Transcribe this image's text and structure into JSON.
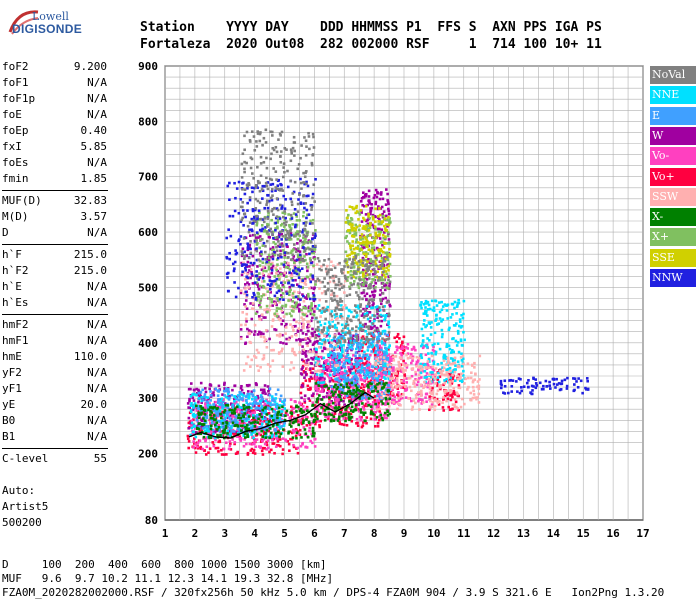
{
  "logo": {
    "top": "Lowell",
    "bottom": "DIGISONDE"
  },
  "header": {
    "line1": "Station    YYYY DAY    DDD HHMMSS P1  FFS S  AXN PPS IGA PS",
    "line2": "Fortaleza  2020 Out08  282 002000 RSF     1  714 100 10+ 11"
  },
  "params": [
    {
      "name": "foF2",
      "value": "9.200"
    },
    {
      "name": "foF1",
      "value": "N/A"
    },
    {
      "name": "foF1p",
      "value": "N/A"
    },
    {
      "name": "foE",
      "value": "N/A"
    },
    {
      "name": "foEp",
      "value": "0.40"
    },
    {
      "name": "fxI",
      "value": "5.85"
    },
    {
      "name": "foEs",
      "value": "N/A"
    },
    {
      "name": "fmin",
      "value": "1.85"
    },
    {
      "name": "MUF(D)",
      "value": "32.83"
    },
    {
      "name": "M(D)",
      "value": "3.57"
    },
    {
      "name": "D",
      "value": "N/A"
    },
    {
      "name": "h`F",
      "value": "215.0"
    },
    {
      "name": "h`F2",
      "value": "215.0"
    },
    {
      "name": "h`E",
      "value": "N/A"
    },
    {
      "name": "h`Es",
      "value": "N/A"
    },
    {
      "name": "hmF2",
      "value": "N/A"
    },
    {
      "name": "hmF1",
      "value": "N/A"
    },
    {
      "name": "hmE",
      "value": "110.0"
    },
    {
      "name": "yF2",
      "value": "N/A"
    },
    {
      "name": "yF1",
      "value": "N/A"
    },
    {
      "name": "yE",
      "value": "20.0"
    },
    {
      "name": "B0",
      "value": "N/A"
    },
    {
      "name": "B1",
      "value": "N/A"
    },
    {
      "name": "C-level",
      "value": "55"
    }
  ],
  "auto": {
    "label": "Auto:",
    "program": "Artist5",
    "version": "500200"
  },
  "legend": [
    {
      "label": "NoVal",
      "color": "#808080"
    },
    {
      "label": "NNE",
      "color": "#00e0ff"
    },
    {
      "label": "E",
      "color": "#40a0ff"
    },
    {
      "label": "W",
      "color": "#a000a0"
    },
    {
      "label": "Vo-",
      "color": "#ff40c0"
    },
    {
      "label": "Vo+",
      "color": "#ff0040"
    },
    {
      "label": "SSW",
      "color": "#ffb0b0"
    },
    {
      "label": "X-",
      "color": "#008000"
    },
    {
      "label": "X+",
      "color": "#80c060"
    },
    {
      "label": "SSE",
      "color": "#d0d000"
    },
    {
      "label": "NNW",
      "color": "#2020e0"
    }
  ],
  "footer": {
    "line1": "D     100  200  400  600  800 1000 1500 3000 [km]",
    "line2": "MUF   9.6  9.7 10.2 11.1 12.3 14.1 19.3 32.8 [MHz]",
    "line3": "FZA0M_2020282002000.RSF / 320fx256h 50 kHz 5.0 km / DPS-4 FZA0M 904 / 3.9 S 321.6 E   Ion2Png 1.3.20"
  },
  "chart_data": {
    "type": "scatter",
    "xlabel": "",
    "ylabel": "",
    "xlim": [
      1,
      17
    ],
    "ylim": [
      80,
      900
    ],
    "x_ticks": [
      1,
      2,
      3,
      4,
      5,
      6,
      7,
      8,
      9,
      10,
      11,
      12,
      13,
      14,
      15,
      16,
      17
    ],
    "y_ticks": [
      80,
      200,
      300,
      400,
      500,
      600,
      700,
      800,
      900
    ],
    "grid": true,
    "legend_position": "right",
    "trace": {
      "name": "",
      "color": "#000000",
      "x": [
        1.8,
        2.2,
        2.7,
        3.2,
        3.7,
        4.2,
        4.7,
        5.2,
        5.7,
        6.2,
        6.7,
        7.2,
        7.7,
        8.0
      ],
      "y": [
        230,
        238,
        230,
        228,
        240,
        245,
        255,
        260,
        270,
        290,
        275,
        290,
        310,
        300
      ]
    },
    "series": [
      {
        "label": "Vo+",
        "regions": [
          [
            1.7,
            5.5,
            200,
            290
          ],
          [
            5.5,
            8.3,
            250,
            380
          ],
          [
            7.5,
            9.0,
            300,
            420
          ],
          [
            9.8,
            10.8,
            280,
            360
          ]
        ]
      },
      {
        "label": "W",
        "regions": [
          [
            1.7,
            4.5,
            240,
            330
          ],
          [
            3.5,
            6.0,
            400,
            600
          ],
          [
            5.5,
            7.5,
            290,
            420
          ],
          [
            7.5,
            8.5,
            420,
            680
          ]
        ]
      },
      {
        "label": "Vo-",
        "regions": [
          [
            1.8,
            6.0,
            210,
            300
          ],
          [
            6.0,
            8.5,
            260,
            380
          ],
          [
            8.0,
            10.0,
            290,
            400
          ]
        ]
      },
      {
        "label": "NNE",
        "regions": [
          [
            1.8,
            5.0,
            230,
            310
          ],
          [
            6.0,
            8.5,
            330,
            470
          ],
          [
            9.5,
            11.0,
            330,
            480
          ]
        ]
      },
      {
        "label": "E",
        "regions": [
          [
            2.0,
            5.0,
            240,
            320
          ],
          [
            6.5,
            8.5,
            300,
            420
          ]
        ]
      },
      {
        "label": "SSW",
        "regions": [
          [
            8.0,
            11.5,
            280,
            380
          ],
          [
            3.5,
            7.0,
            350,
            550
          ]
        ]
      },
      {
        "label": "X-",
        "regions": [
          [
            2.0,
            6.0,
            230,
            290
          ],
          [
            6.0,
            8.5,
            260,
            330
          ]
        ]
      },
      {
        "label": "X+",
        "regions": [
          [
            4.0,
            6.0,
            450,
            640
          ],
          [
            7.0,
            8.5,
            500,
            640
          ]
        ]
      },
      {
        "label": "SSE",
        "regions": [
          [
            7.0,
            8.5,
            520,
            650
          ]
        ]
      },
      {
        "label": "NNW",
        "regions": [
          [
            12.2,
            15.2,
            310,
            340
          ],
          [
            3.0,
            6.0,
            480,
            700
          ]
        ]
      },
      {
        "label": "NoVal",
        "regions": [
          [
            3.5,
            6.0,
            550,
            790
          ],
          [
            6.0,
            8.5,
            400,
            560
          ]
        ]
      }
    ]
  }
}
